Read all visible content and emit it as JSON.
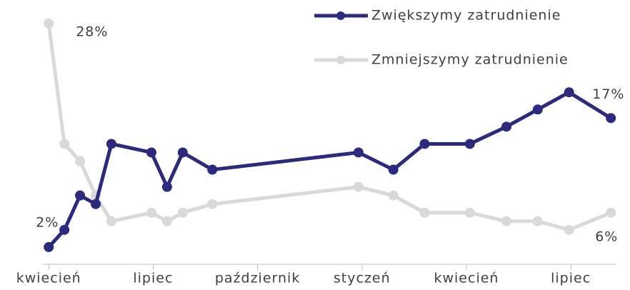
{
  "chart_data": {
    "type": "line",
    "x": [
      0,
      0.45,
      0.9,
      1.35,
      1.8,
      2.95,
      3.4,
      3.85,
      4.7,
      8.9,
      9.9,
      10.8,
      12.1,
      13.15,
      14.05,
      14.95,
      16.15
    ],
    "xlim": [
      -1.4,
      16.7
    ],
    "xticks": [
      {
        "value": 0,
        "label": "kwiecień"
      },
      {
        "value": 3,
        "label": "lipiec"
      },
      {
        "value": 6,
        "label": "październik"
      },
      {
        "value": 9,
        "label": "styczeń"
      },
      {
        "value": 12,
        "label": "kwiecień"
      },
      {
        "value": 15,
        "label": "lipiec"
      }
    ],
    "ylim": [
      0,
      30
    ],
    "legend": "top-right",
    "series": [
      {
        "name": "Zwiększymy zatrudnienie",
        "color": "#2b2a7c",
        "values": [
          2,
          4,
          8,
          7,
          14,
          13,
          9,
          13,
          11,
          13,
          11,
          14,
          14,
          16,
          18,
          20,
          17
        ],
        "value_labels": [
          "2%",
          null,
          null,
          null,
          null,
          null,
          null,
          null,
          null,
          null,
          null,
          null,
          null,
          null,
          null,
          null,
          "17%"
        ]
      },
      {
        "name": "Zmniejszymy zatrudnienie",
        "color": "#d9d9d9",
        "values": [
          28,
          14,
          12,
          8,
          5,
          6,
          5,
          6,
          7,
          9,
          8,
          6,
          6,
          5,
          5,
          4,
          6
        ],
        "value_labels": [
          "28%",
          null,
          null,
          null,
          null,
          null,
          null,
          null,
          null,
          null,
          null,
          null,
          null,
          null,
          null,
          null,
          "6%"
        ]
      }
    ]
  }
}
